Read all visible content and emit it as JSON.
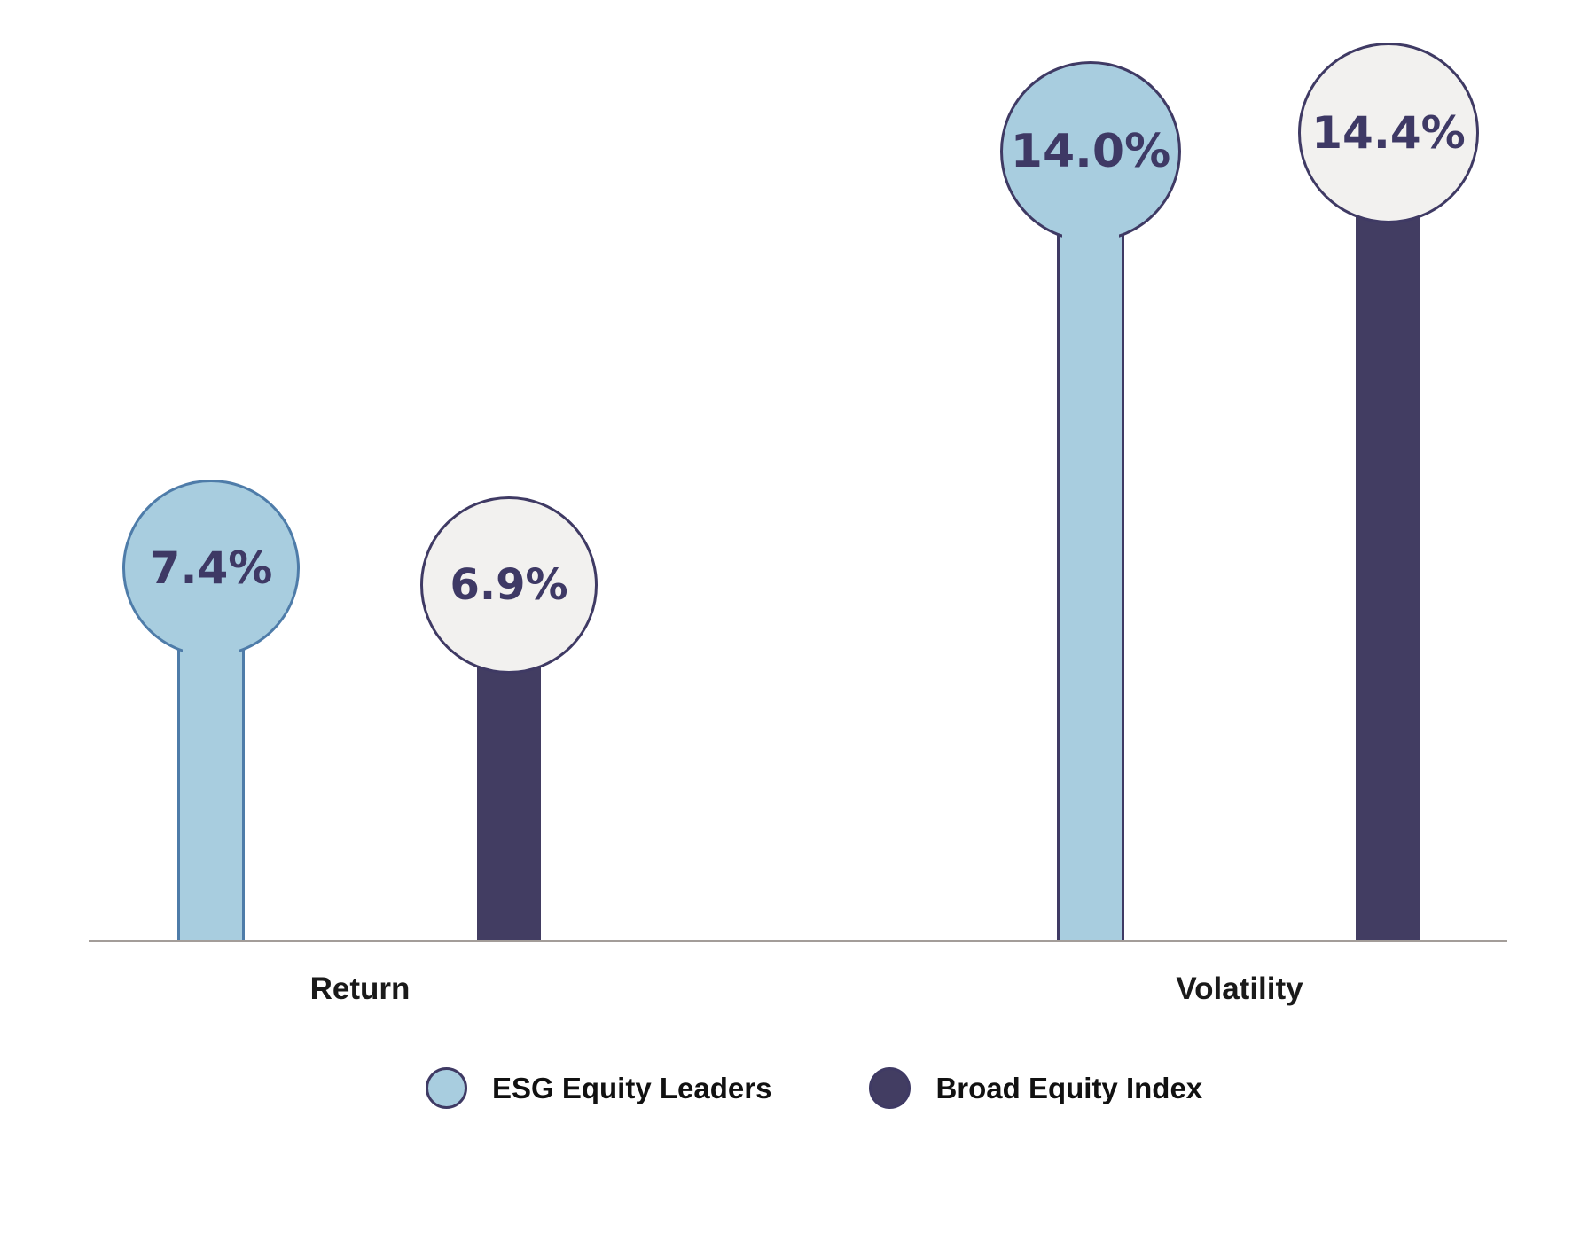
{
  "chart_data": {
    "type": "bar",
    "variant": "lollipop",
    "title": "",
    "categories": [
      "Return",
      "Volatility"
    ],
    "series": [
      {
        "name": "ESG Equity Leaders",
        "values": [
          7.4,
          14.0
        ],
        "labels": [
          "7.4%",
          "14.0%"
        ],
        "fill_color": "#A8CDDF",
        "outline_color_return": "#4E7CA9",
        "outline_color_volatility": "#3F3A64"
      },
      {
        "name": "Broad Equity Index",
        "values": [
          6.9,
          14.4
        ],
        "labels": [
          "6.9%",
          "14.4%"
        ],
        "stem_color": "#423D62",
        "bubble_fill_color": "#F2F1EF",
        "outline_color": "#3F3A64"
      }
    ],
    "xlabel": "",
    "ylabel": "",
    "ylim": [
      0,
      15
    ],
    "grid": false,
    "axis_line_color": "#A39D99",
    "value_text_color": "#3E3965",
    "category_text_color": "#1A1A1A",
    "legend_position": "bottom"
  }
}
